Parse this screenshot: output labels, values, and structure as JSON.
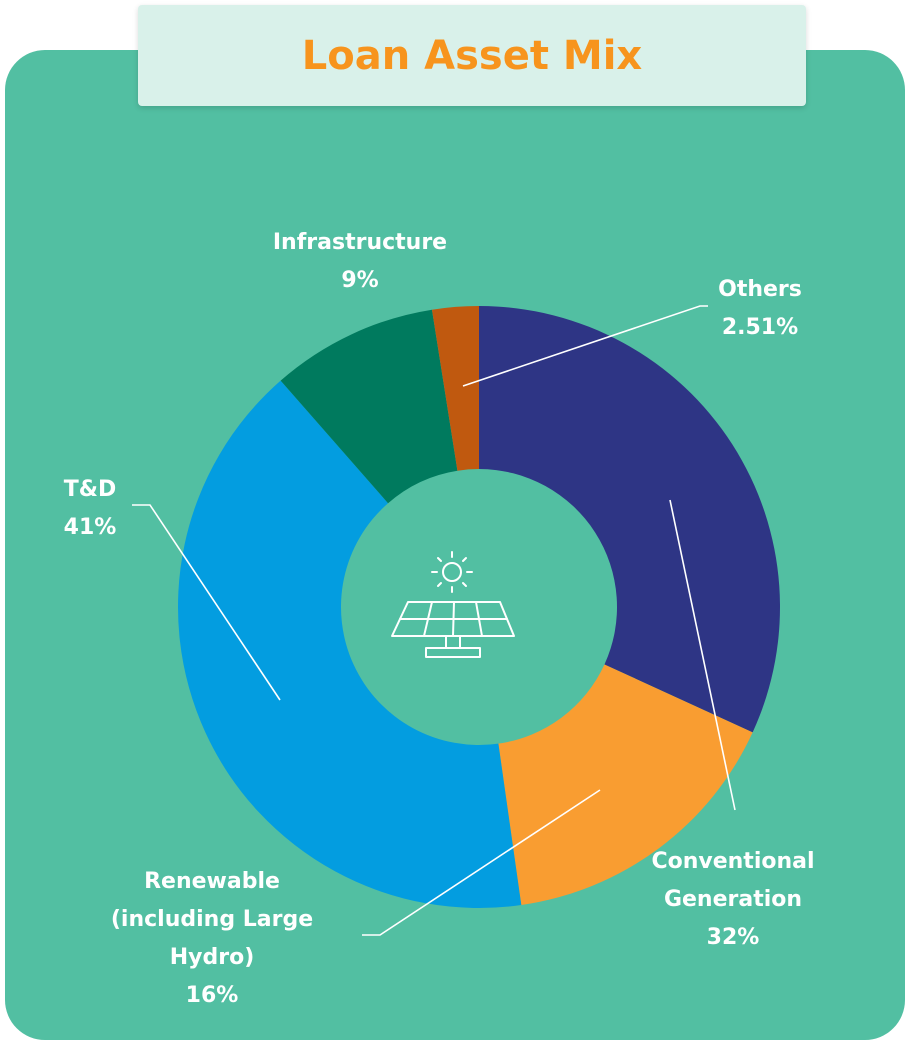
{
  "chart_data": {
    "type": "donut",
    "title": "Loan Asset Mix",
    "categories": [
      "Conventional Generation",
      "Renewable (including Large Hydro)",
      "T&D",
      "Infrastructure",
      "Others"
    ],
    "values": [
      32,
      16,
      41,
      9,
      2.51
    ],
    "value_labels": [
      "32%",
      "16%",
      "41%",
      "9%",
      "2.51%"
    ],
    "colors": [
      "#2e3585",
      "#f99d31",
      "#039de0",
      "#007a5e",
      "#c0590f"
    ]
  }
}
